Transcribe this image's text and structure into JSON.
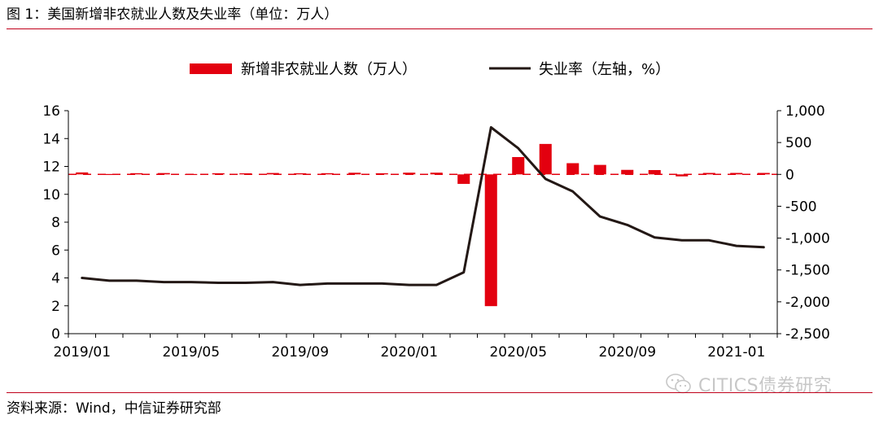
{
  "figure_title": "图 1：美国新增非农就业人数及失业率（单位：万人）",
  "source": "资料来源：Wind，中信证券研究部",
  "watermark": "CITICS债券研究",
  "colors": {
    "bar": "#e3000f",
    "line": "#231815",
    "rule": "#c0001a",
    "zero_line": "#e3000f"
  },
  "chart_data": {
    "type": "bar+line",
    "grid": false,
    "legend_position": "top-center",
    "x_tick_labels": [
      "2019/01",
      "2019/05",
      "2019/09",
      "2020/01",
      "2020/05",
      "2020/09",
      "2021-01"
    ],
    "months": [
      "2019/01",
      "2019/02",
      "2019/03",
      "2019/04",
      "2019/05",
      "2019/06",
      "2019/07",
      "2019/08",
      "2019/09",
      "2019/10",
      "2019/11",
      "2019/12",
      "2020/01",
      "2020/02",
      "2020/03",
      "2020/04",
      "2020/05",
      "2020/06",
      "2020/07",
      "2020/08",
      "2020/09",
      "2020/10",
      "2020/11",
      "2020/12",
      "2021/01",
      "2021/02"
    ],
    "left_axis": {
      "ylim": [
        0,
        16
      ],
      "ticks": [
        0,
        2,
        4,
        6,
        8,
        10,
        12,
        14,
        16
      ]
    },
    "right_axis": {
      "ylim": [
        -2500,
        1000
      ],
      "ticks": [
        1000,
        500,
        0,
        -500,
        -1000,
        -1500,
        -2000,
        -2500
      ],
      "tick_labels": [
        "1,000",
        "500",
        "0",
        "-500",
        "-1,000",
        "-1,500",
        "-2,000",
        "-2,500"
      ]
    },
    "series": [
      {
        "name": "新增非农就业人数（万人）",
        "type": "bar",
        "axis": "right",
        "values": [
          31,
          6,
          19,
          21,
          6,
          18,
          17,
          22,
          18,
          19,
          26,
          18,
          27,
          27,
          -149,
          -2068,
          272,
          478,
          176,
          149,
          71,
          68,
          -31,
          23,
          23,
          23
        ]
      },
      {
        "name": "失业率（左轴，%）",
        "type": "line",
        "axis": "left",
        "values": [
          4.0,
          3.8,
          3.8,
          3.7,
          3.7,
          3.65,
          3.65,
          3.7,
          3.5,
          3.6,
          3.6,
          3.6,
          3.5,
          3.5,
          4.4,
          14.8,
          13.3,
          11.1,
          10.2,
          8.4,
          7.8,
          6.9,
          6.7,
          6.7,
          6.3,
          6.2
        ]
      }
    ]
  }
}
